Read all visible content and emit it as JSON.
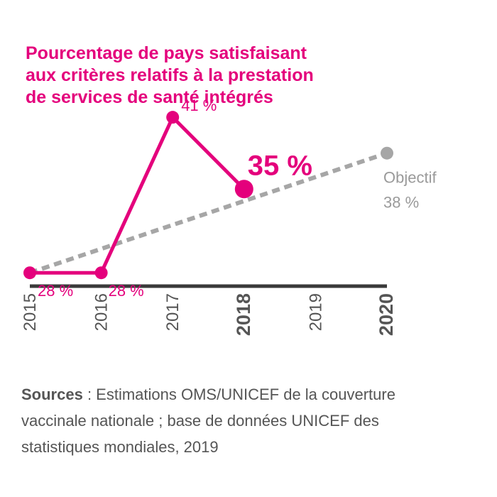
{
  "title_lines": [
    "Pourcentage de pays satisfaisant",
    "aux critères relatifs à la prestation",
    "de services de santé intégrés"
  ],
  "colors": {
    "accent": "#e4007c",
    "target": "#a6a6a6",
    "axis": "#3a3a3a",
    "text": "#555555"
  },
  "chart_data": {
    "type": "line",
    "x": [
      2015,
      2016,
      2017,
      2018,
      2019,
      2020
    ],
    "xlim": [
      2015,
      2020
    ],
    "ylim": [
      20,
      50
    ],
    "grid": false,
    "series": [
      {
        "values": [
          28,
          28,
          41,
          35
        ],
        "x": [
          2015,
          2016,
          2017,
          2018
        ],
        "style": "solid"
      },
      {
        "values": [
          28,
          38
        ],
        "x": [
          2015,
          2020
        ],
        "style": "dotted"
      }
    ],
    "data_labels": [
      "28 %",
      "28 %",
      "41 %",
      "35 %"
    ],
    "target_label": "Objectif",
    "target_value_label": "38 %",
    "highlighted_ticks": [
      2018,
      2020
    ]
  },
  "source": {
    "bold": "Sources",
    "lines": [
      " : Estimations OMS/UNICEF de la couverture",
      "vaccinale nationale ; base de données UNICEF des",
      "statistiques mondiales, 2019"
    ]
  }
}
